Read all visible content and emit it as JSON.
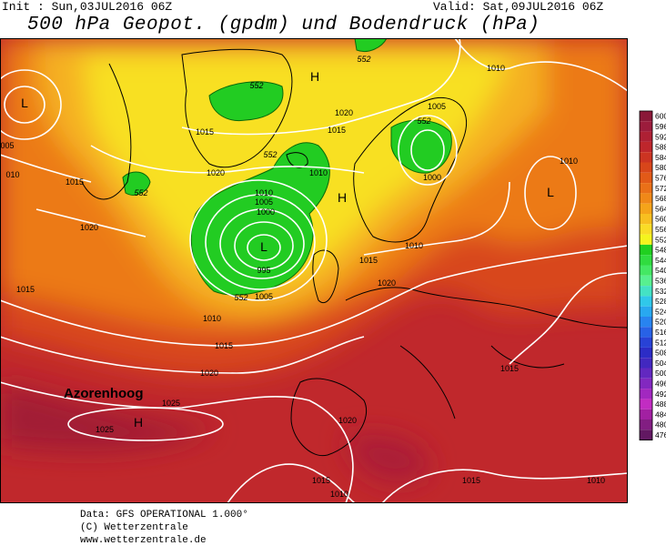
{
  "header": {
    "init": "Init : Sun,03JUL2016 06Z",
    "valid": "Valid: Sat,09JUL2016 06Z",
    "title": "500 hPa Geopot. (gpdm) und Bodendruck (hPa)"
  },
  "map": {
    "annotation": "Azorenhoog",
    "pressure_labels": [
      "1010",
      "1005",
      "1015",
      "1020",
      "1015",
      "1010",
      "1020",
      "1015",
      "1020",
      "1015",
      "1010",
      "1005",
      "1000",
      "995",
      "1005",
      "1010",
      "1015",
      "1020",
      "1025",
      "1025",
      "1020",
      "1015",
      "1010",
      "1015",
      "1010",
      "1015",
      "1020",
      "1015",
      "1010",
      "1000",
      "1010",
      "005",
      "010"
    ],
    "height_labels": [
      "552",
      "552",
      "552",
      "552",
      "552",
      "552"
    ],
    "lows": [
      "L",
      "L",
      "L"
    ],
    "highs": [
      "H",
      "H",
      "H"
    ]
  },
  "legend": {
    "levels": [
      600,
      596,
      592,
      588,
      584,
      580,
      576,
      572,
      568,
      564,
      560,
      556,
      552,
      548,
      544,
      540,
      536,
      532,
      528,
      524,
      520,
      516,
      512,
      508,
      504,
      500,
      496,
      492,
      488,
      484,
      480,
      476
    ],
    "colors": [
      "#8a1838",
      "#9c1c3c",
      "#ae2034",
      "#be262c",
      "#cc3422",
      "#d8461a",
      "#e25a18",
      "#ea7018",
      "#f08818",
      "#f5a41a",
      "#f8bf20",
      "#fadc26",
      "#f4f41e",
      "#20d020",
      "#30dc40",
      "#44e864",
      "#58f090",
      "#44e2c4",
      "#30c8ea",
      "#28a8f0",
      "#2884f0",
      "#2862e6",
      "#2842d6",
      "#2c2cc6",
      "#4228c0",
      "#6228c0",
      "#8228c0",
      "#a228c0",
      "#c22cc2",
      "#a220a2",
      "#821e82",
      "#621862"
    ]
  },
  "footer": {
    "lines": [
      "Data: GFS OPERATIONAL 1.000°",
      "(C) Wetterzentrale",
      "www.wetterzentrale.de"
    ]
  }
}
